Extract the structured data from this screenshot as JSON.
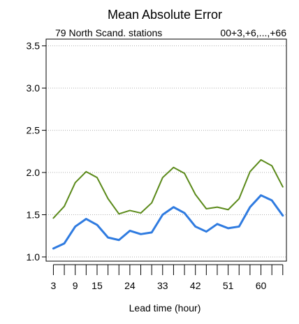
{
  "chart_data": {
    "type": "line",
    "title": "Mean Absolute Error",
    "subtitle_left": "79 North Scand. stations",
    "subtitle_right": "00+3,+6,...,+66",
    "xlabel": "Lead time (hour)",
    "ylabel": "",
    "x": [
      3,
      6,
      9,
      12,
      15,
      18,
      21,
      24,
      27,
      30,
      33,
      36,
      39,
      42,
      45,
      48,
      51,
      54,
      57,
      60,
      63,
      66
    ],
    "xlim": [
      1,
      67
    ],
    "ylim": [
      0.95,
      3.58
    ],
    "x_ticks": [
      3,
      9,
      15,
      24,
      33,
      42,
      51,
      60
    ],
    "x_minor_ticks": [
      3,
      6,
      9,
      12,
      15,
      18,
      21,
      24,
      27,
      30,
      33,
      36,
      39,
      42,
      45,
      48,
      51,
      54,
      57,
      60,
      63,
      66
    ],
    "y_ticks": [
      1.0,
      1.5,
      2.0,
      2.5,
      3.0,
      3.5
    ],
    "y_tick_labels": [
      "1.0",
      "1.5",
      "2.0",
      "2.5",
      "3.0",
      "3.5"
    ],
    "grid": "horizontal dotted",
    "legend": "none",
    "series": [
      {
        "color": "#5b8a1a",
        "values": [
          1.46,
          1.6,
          1.88,
          2.01,
          1.94,
          1.69,
          1.51,
          1.55,
          1.52,
          1.64,
          1.94,
          2.06,
          1.99,
          1.74,
          1.57,
          1.59,
          1.56,
          1.69,
          2.01,
          2.15,
          2.08,
          1.83
        ]
      },
      {
        "color": "#2f7be0",
        "values": [
          1.1,
          1.16,
          1.36,
          1.45,
          1.38,
          1.23,
          1.2,
          1.31,
          1.27,
          1.29,
          1.5,
          1.59,
          1.52,
          1.36,
          1.3,
          1.39,
          1.34,
          1.36,
          1.59,
          1.73,
          1.67,
          1.49
        ]
      }
    ]
  }
}
